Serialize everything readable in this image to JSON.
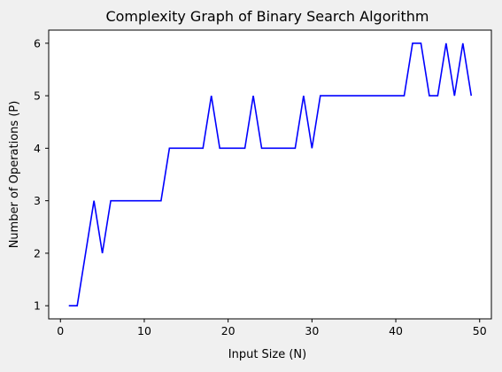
{
  "chart_data": {
    "type": "line",
    "title": "Complexity Graph of Binary Search Algorithm",
    "xlabel": "Input Size (N)",
    "ylabel": "Number of Operations (P)",
    "xlim": [
      -1.4,
      51.4
    ],
    "ylim": [
      0.75,
      6.25
    ],
    "xticks": [
      0,
      10,
      20,
      30,
      40,
      50
    ],
    "yticks": [
      1,
      2,
      3,
      4,
      5,
      6
    ],
    "grid": false,
    "line_color": "#0000ff",
    "series": [
      {
        "x": [
          1,
          2,
          3,
          4,
          5,
          6,
          7,
          8,
          9,
          10,
          11,
          12,
          13,
          14,
          15,
          16,
          17,
          18,
          19,
          20,
          21,
          22,
          23,
          24,
          25,
          26,
          27,
          28,
          29,
          30,
          31,
          32,
          33,
          34,
          35,
          36,
          37,
          38,
          39,
          40,
          41,
          42,
          43,
          44,
          45,
          46,
          47,
          48,
          49
        ],
        "values": [
          1,
          1,
          2,
          3,
          2,
          3,
          3,
          3,
          3,
          3,
          3,
          3,
          4,
          4,
          4,
          4,
          4,
          5,
          4,
          4,
          4,
          4,
          5,
          4,
          4,
          4,
          4,
          4,
          5,
          4,
          5,
          5,
          5,
          5,
          5,
          5,
          5,
          5,
          5,
          5,
          5,
          6,
          6,
          5,
          5,
          6,
          5,
          6,
          5
        ]
      }
    ]
  }
}
